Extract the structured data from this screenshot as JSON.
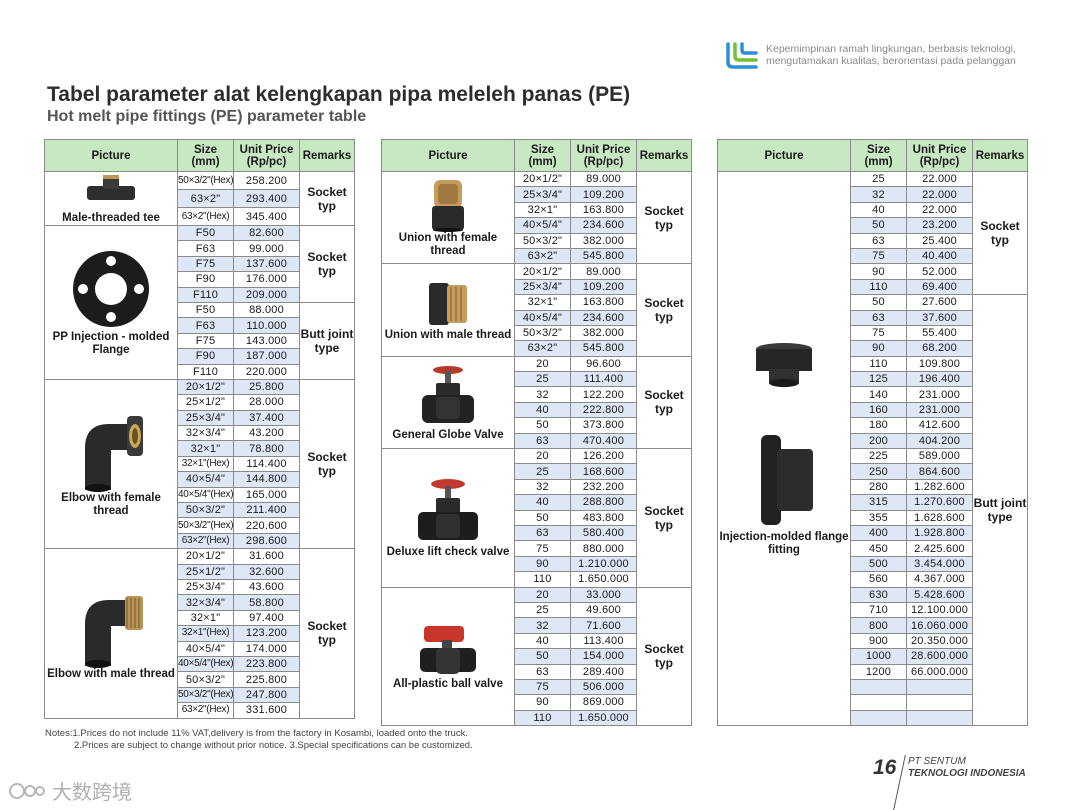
{
  "header": {
    "tagline_line1": "Kepemimpinan ramah lingkungan, berbasis teknologi,",
    "tagline_line2": "mengutamakan kualitas, berorientasi pada pelanggan"
  },
  "title": {
    "indonesian": "Tabel parameter alat kelengkapan pipa meleleh panas (PE)",
    "english": "Hot melt pipe fittings (PE) parameter table"
  },
  "headers": {
    "picture": "Picture",
    "size_l1": "Size",
    "size_l2": "(mm)",
    "price_l1": "Unit Price",
    "price_l2": "(Rp/pc)",
    "remarks": "Remarks"
  },
  "tables": [
    {
      "groups": [
        {
          "picture": "Male-threaded tee",
          "icon": "tee-icon",
          "sub": [
            {
              "remark": "Socket typ",
              "rows": [
                {
                  "size": "50×3/2\"(Hex)",
                  "price": "258.200"
                },
                {
                  "size": "63×2\"",
                  "price": "293.400"
                },
                {
                  "size": "63×2\"(Hex)",
                  "price": "345.400"
                }
              ]
            }
          ]
        },
        {
          "picture": "PP Injection - molded Flange",
          "icon": "flange-gasket-icon",
          "sub": [
            {
              "remark": "Socket typ",
              "rows": [
                {
                  "size": "F50",
                  "price": "82.600"
                },
                {
                  "size": "F63",
                  "price": "99.000"
                },
                {
                  "size": "F75",
                  "price": "137.600"
                },
                {
                  "size": "F90",
                  "price": "176.000"
                },
                {
                  "size": "F110",
                  "price": "209.000"
                }
              ]
            },
            {
              "remark": "Butt joint type",
              "rows": [
                {
                  "size": "F50",
                  "price": "88.000"
                },
                {
                  "size": "F63",
                  "price": "110.000"
                },
                {
                  "size": "F75",
                  "price": "143.000"
                },
                {
                  "size": "F90",
                  "price": "187.000"
                },
                {
                  "size": "F110",
                  "price": "220.000"
                }
              ]
            }
          ]
        },
        {
          "picture": "Elbow with female thread",
          "icon": "elbow-female-icon",
          "sub": [
            {
              "remark": "Socket typ",
              "rows": [
                {
                  "size": "20×1/2\"",
                  "price": "25.800"
                },
                {
                  "size": "25×1/2\"",
                  "price": "28.000"
                },
                {
                  "size": "25×3/4\"",
                  "price": "37.400"
                },
                {
                  "size": "32×3/4\"",
                  "price": "43.200"
                },
                {
                  "size": "32×1\"",
                  "price": "78.800"
                },
                {
                  "size": "32×1\"(Hex)",
                  "price": "114.400"
                },
                {
                  "size": "40×5/4\"",
                  "price": "144.800"
                },
                {
                  "size": "40×5/4\"(Hex)",
                  "price": "165.000"
                },
                {
                  "size": "50×3/2\"",
                  "price": "211.400"
                },
                {
                  "size": "50×3/2\"(Hex)",
                  "price": "220.600"
                },
                {
                  "size": "63×2\"(Hex)",
                  "price": "298.600"
                }
              ]
            }
          ]
        },
        {
          "picture": "Elbow with male thread",
          "icon": "elbow-male-icon",
          "sub": [
            {
              "remark": "Socket typ",
              "rows": [
                {
                  "size": "20×1/2\"",
                  "price": "31.600"
                },
                {
                  "size": "25×1/2\"",
                  "price": "32.600"
                },
                {
                  "size": "25×3/4\"",
                  "price": "43.600"
                },
                {
                  "size": "32×3/4\"",
                  "price": "58.800"
                },
                {
                  "size": "32×1\"",
                  "price": "97.400"
                },
                {
                  "size": "32×1\"(Hex)",
                  "price": "123.200"
                },
                {
                  "size": "40×5/4\"",
                  "price": "174.000"
                },
                {
                  "size": "40×5/4\"(Hex)",
                  "price": "223.800"
                },
                {
                  "size": "50×3/2\"",
                  "price": "225.800"
                },
                {
                  "size": "50×3/2\"(Hex)",
                  "price": "247.800"
                },
                {
                  "size": "63×2\"(Hex)",
                  "price": "331.600"
                }
              ]
            }
          ]
        }
      ]
    },
    {
      "groups": [
        {
          "picture": "Union with female thread",
          "icon": "union-female-icon",
          "sub": [
            {
              "remark": "Socket typ",
              "rows": [
                {
                  "size": "20×1/2\"",
                  "price": "89.000"
                },
                {
                  "size": "25×3/4\"",
                  "price": "109.200"
                },
                {
                  "size": "32×1\"",
                  "price": "163.800"
                },
                {
                  "size": "40×5/4\"",
                  "price": "234.600"
                },
                {
                  "size": "50×3/2\"",
                  "price": "382.000"
                },
                {
                  "size": "63×2\"",
                  "price": "545.800"
                }
              ]
            }
          ]
        },
        {
          "picture": "Union with male thread",
          "icon": "union-male-icon",
          "sub": [
            {
              "remark": "Socket typ",
              "rows": [
                {
                  "size": "20×1/2\"",
                  "price": "89.000"
                },
                {
                  "size": "25×3/4\"",
                  "price": "109.200"
                },
                {
                  "size": "32×1\"",
                  "price": "163.800"
                },
                {
                  "size": "40×5/4\"",
                  "price": "234.600"
                },
                {
                  "size": "50×3/2\"",
                  "price": "382.000"
                },
                {
                  "size": "63×2\"",
                  "price": "545.800"
                }
              ]
            }
          ]
        },
        {
          "picture": "General Globe Valve",
          "icon": "globe-valve-icon",
          "sub": [
            {
              "remark": "Socket typ",
              "rows": [
                {
                  "size": "20",
                  "price": "96.600"
                },
                {
                  "size": "25",
                  "price": "111.400"
                },
                {
                  "size": "32",
                  "price": "122.200"
                },
                {
                  "size": "40",
                  "price": "222.800"
                },
                {
                  "size": "50",
                  "price": "373.800"
                },
                {
                  "size": "63",
                  "price": "470.400"
                }
              ]
            }
          ]
        },
        {
          "picture": "Deluxe lift check valve",
          "icon": "check-valve-icon",
          "sub": [
            {
              "remark": "Socket typ",
              "rows": [
                {
                  "size": "20",
                  "price": "126.200"
                },
                {
                  "size": "25",
                  "price": "168.600"
                },
                {
                  "size": "32",
                  "price": "232.200"
                },
                {
                  "size": "40",
                  "price": "288.800"
                },
                {
                  "size": "50",
                  "price": "483.800"
                },
                {
                  "size": "63",
                  "price": "580.400"
                },
                {
                  "size": "75",
                  "price": "880.000"
                },
                {
                  "size": "90",
                  "price": "1.210.000"
                },
                {
                  "size": "110",
                  "price": "1.650.000"
                }
              ]
            }
          ]
        },
        {
          "picture": "All-plastic ball valve",
          "icon": "ball-valve-icon",
          "sub": [
            {
              "remark": "Socket typ",
              "rows": [
                {
                  "size": "20",
                  "price": "33.000"
                },
                {
                  "size": "25",
                  "price": "49.600"
                },
                {
                  "size": "32",
                  "price": "71.600"
                },
                {
                  "size": "40",
                  "price": "113.400"
                },
                {
                  "size": "50",
                  "price": "154.000"
                },
                {
                  "size": "63",
                  "price": "289.400"
                },
                {
                  "size": "75",
                  "price": "506.000"
                },
                {
                  "size": "90",
                  "price": "869.000"
                },
                {
                  "size": "110",
                  "price": "1.650.000"
                }
              ]
            }
          ]
        }
      ]
    },
    {
      "groups": [
        {
          "picture": "Injection-molded flange fitting",
          "icon": "flange-fitting-icon",
          "sub": [
            {
              "remark": "Socket typ",
              "rows": [
                {
                  "size": "25",
                  "price": "22.000"
                },
                {
                  "size": "32",
                  "price": "22.000"
                },
                {
                  "size": "40",
                  "price": "22.000"
                },
                {
                  "size": "50",
                  "price": "23.200"
                },
                {
                  "size": "63",
                  "price": "25.400"
                },
                {
                  "size": "75",
                  "price": "40.400"
                },
                {
                  "size": "90",
                  "price": "52.000"
                },
                {
                  "size": "110",
                  "price": "69.400"
                }
              ]
            },
            {
              "remark": "Butt joint type",
              "rows": [
                {
                  "size": "50",
                  "price": "27.600"
                },
                {
                  "size": "63",
                  "price": "37.600"
                },
                {
                  "size": "75",
                  "price": "55.400"
                },
                {
                  "size": "90",
                  "price": "68.200"
                },
                {
                  "size": "110",
                  "price": "109.800"
                },
                {
                  "size": "125",
                  "price": "196.400"
                },
                {
                  "size": "140",
                  "price": "231.000"
                },
                {
                  "size": "160",
                  "price": "231.000"
                },
                {
                  "size": "180",
                  "price": "412.600"
                },
                {
                  "size": "200",
                  "price": "404.200"
                },
                {
                  "size": "225",
                  "price": "589.000"
                },
                {
                  "size": "250",
                  "price": "864.600"
                },
                {
                  "size": "280",
                  "price": "1.282.600"
                },
                {
                  "size": "315",
                  "price": "1.270.600"
                },
                {
                  "size": "355",
                  "price": "1.628.600"
                },
                {
                  "size": "400",
                  "price": "1.928.800"
                },
                {
                  "size": "450",
                  "price": "2.425.600"
                },
                {
                  "size": "500",
                  "price": "3.454.000"
                },
                {
                  "size": "560",
                  "price": "4.367.000"
                },
                {
                  "size": "630",
                  "price": "5.428.600"
                },
                {
                  "size": "710",
                  "price": "12.100.000"
                },
                {
                  "size": "800",
                  "price": "16.060.000"
                },
                {
                  "size": "900",
                  "price": "20.350.000"
                },
                {
                  "size": "1000",
                  "price": "28.600.000"
                },
                {
                  "size": "1200",
                  "price": "66.000.000"
                },
                {
                  "size": "",
                  "price": ""
                },
                {
                  "size": "",
                  "price": ""
                },
                {
                  "size": "",
                  "price": ""
                }
              ]
            }
          ]
        }
      ]
    }
  ],
  "footer": {
    "note1": "Notes:1.Prices do not include 11% VAT,delivery is from the factory in Kosambi, loaded onto the truck.",
    "note2": "2.Prices are subject to change without prior notice. 3.Special specifications can be customized.",
    "page_number": "16",
    "company_line1": "PT SENTUM",
    "company_line2": "TEKNOLOGI INDONESIA",
    "watermark": "大数跨境"
  },
  "colors": {
    "header_green": "#c8e8c4",
    "row_blue": "#dde7f5",
    "logo_blue": "#2a8fd6",
    "logo_green": "#6fbf3a"
  }
}
